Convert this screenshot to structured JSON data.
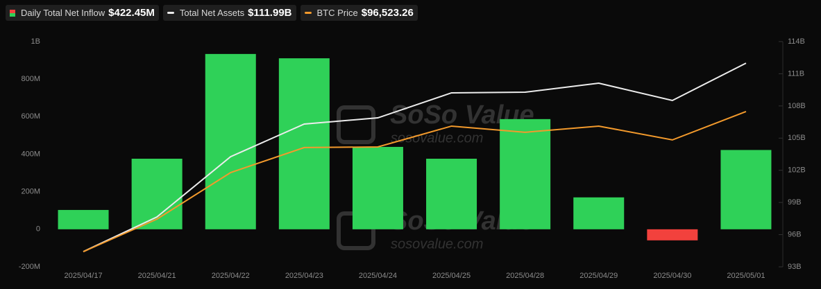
{
  "chart_data": {
    "type": "bar",
    "categories": [
      "2025/04/17",
      "2025/04/21",
      "2025/04/22",
      "2025/04/23",
      "2025/04/24",
      "2025/04/25",
      "2025/04/28",
      "2025/04/29",
      "2025/04/30",
      "2025/05/01"
    ],
    "series": [
      {
        "name": "Daily Total Net Inflow",
        "legend_value": "$422.45M",
        "type": "bar",
        "color": "#2fd158",
        "negative_color": "#f2413d",
        "values": [
          103,
          376,
          934,
          911,
          439,
          376,
          587,
          170,
          -59,
          422.45
        ]
      },
      {
        "name": "Total Net Assets",
        "legend_value": "$111.99B",
        "type": "line",
        "axis": "y2",
        "color": "#ececec",
        "values": [
          94.42,
          97.65,
          103.27,
          106.31,
          106.89,
          109.22,
          109.28,
          110.12,
          108.51,
          111.99
        ]
      },
      {
        "name": "BTC Price",
        "legend_value": "$96,523.26",
        "type": "line",
        "axis": "y3",
        "color": "#f39a2c",
        "values": [
          84950,
          87640,
          91480,
          93550,
          93600,
          95320,
          94810,
          95320,
          94180,
          96523.26
        ]
      }
    ],
    "ylim": [
      -200,
      1000
    ],
    "yticks": [
      {
        "value": -200,
        "label": "-200M"
      },
      0,
      {
        "value": 200,
        "label": "200M"
      },
      {
        "value": 400,
        "label": "400M"
      },
      {
        "value": 600,
        "label": "600M"
      },
      {
        "value": 800,
        "label": "800M"
      },
      {
        "value": 1000,
        "label": "1B"
      }
    ],
    "y2lim": [
      93,
      114
    ],
    "y2ticks": [
      {
        "value": 93,
        "label": "93B"
      },
      {
        "value": 96,
        "label": "96B"
      },
      {
        "value": 99,
        "label": "99B"
      },
      {
        "value": 102,
        "label": "102B"
      },
      {
        "value": 105,
        "label": "105B"
      },
      {
        "value": 108,
        "label": "108B"
      },
      {
        "value": 111,
        "label": "111B"
      },
      {
        "value": 114,
        "label": "114B"
      }
    ],
    "y3lim": [
      83700,
      102300
    ],
    "watermark": [
      "SoSo Value",
      "sosovalue.com"
    ]
  }
}
